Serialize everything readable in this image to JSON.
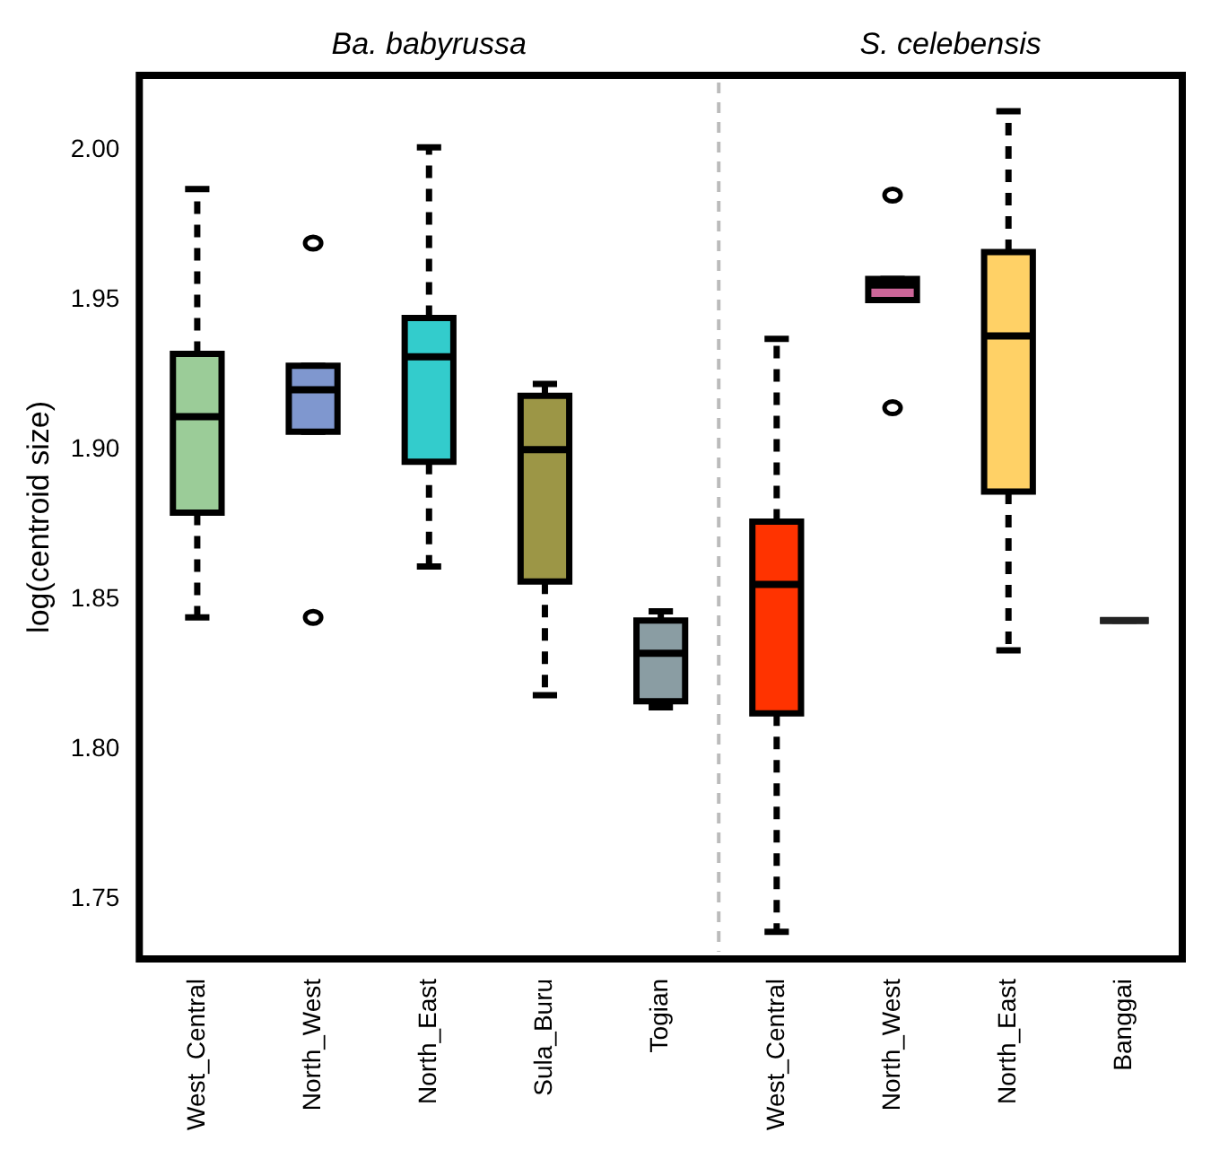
{
  "chart_data": {
    "type": "box",
    "ylabel": "log(centroid size)",
    "categories": [
      "West_Central",
      "North_West",
      "North_East",
      "Sula_Buru",
      "Togian",
      "West_Central",
      "North_West",
      "North_East",
      "Banggai"
    ],
    "colors": [
      "#9bcc98",
      "#7f97cf",
      "#33cccc",
      "#9c9646",
      "#8a9da3",
      "#ff3300",
      "#cc6699",
      "#ffd166",
      "#222222"
    ],
    "boxes": [
      {
        "low": 1.844,
        "q1": 1.879,
        "median": 1.911,
        "q3": 1.932,
        "high": 1.987
      },
      {
        "low": 1.906,
        "q1": 1.906,
        "median": 1.92,
        "q3": 1.928,
        "high": 1.928,
        "outliers": [
          1.969,
          1.844
        ]
      },
      {
        "low": 1.861,
        "q1": 1.896,
        "median": 1.931,
        "q3": 1.944,
        "high": 2.001
      },
      {
        "low": 1.818,
        "q1": 1.856,
        "median": 1.9,
        "q3": 1.918,
        "high": 1.922
      },
      {
        "low": 1.814,
        "q1": 1.816,
        "median": 1.832,
        "q3": 1.843,
        "high": 1.846
      },
      {
        "low": 1.739,
        "q1": 1.812,
        "median": 1.855,
        "q3": 1.876,
        "high": 1.937
      },
      {
        "low": 1.95,
        "q1": 1.95,
        "median": 1.955,
        "q3": 1.957,
        "high": 1.957,
        "outliers": [
          1.985,
          1.914
        ]
      },
      {
        "low": 1.833,
        "q1": 1.886,
        "median": 1.938,
        "q3": 1.966,
        "high": 2.013
      },
      {
        "low": 1.843,
        "q1": 1.843,
        "median": 1.843,
        "q3": 1.843,
        "high": 1.843
      }
    ],
    "ylim": [
      1.73,
      2.025
    ],
    "yticks": [
      {
        "value": 1.75,
        "label": "1.75"
      },
      {
        "value": 1.8,
        "label": "1.80"
      },
      {
        "value": 1.85,
        "label": "1.85"
      },
      {
        "value": 1.9,
        "label": "1.90"
      },
      {
        "value": 1.95,
        "label": "1.95"
      },
      {
        "value": 2.0,
        "label": "2.00"
      }
    ],
    "annotations": [
      "Ba. babyrussa",
      "S. celebensis"
    ],
    "grid": false,
    "legend": false
  }
}
